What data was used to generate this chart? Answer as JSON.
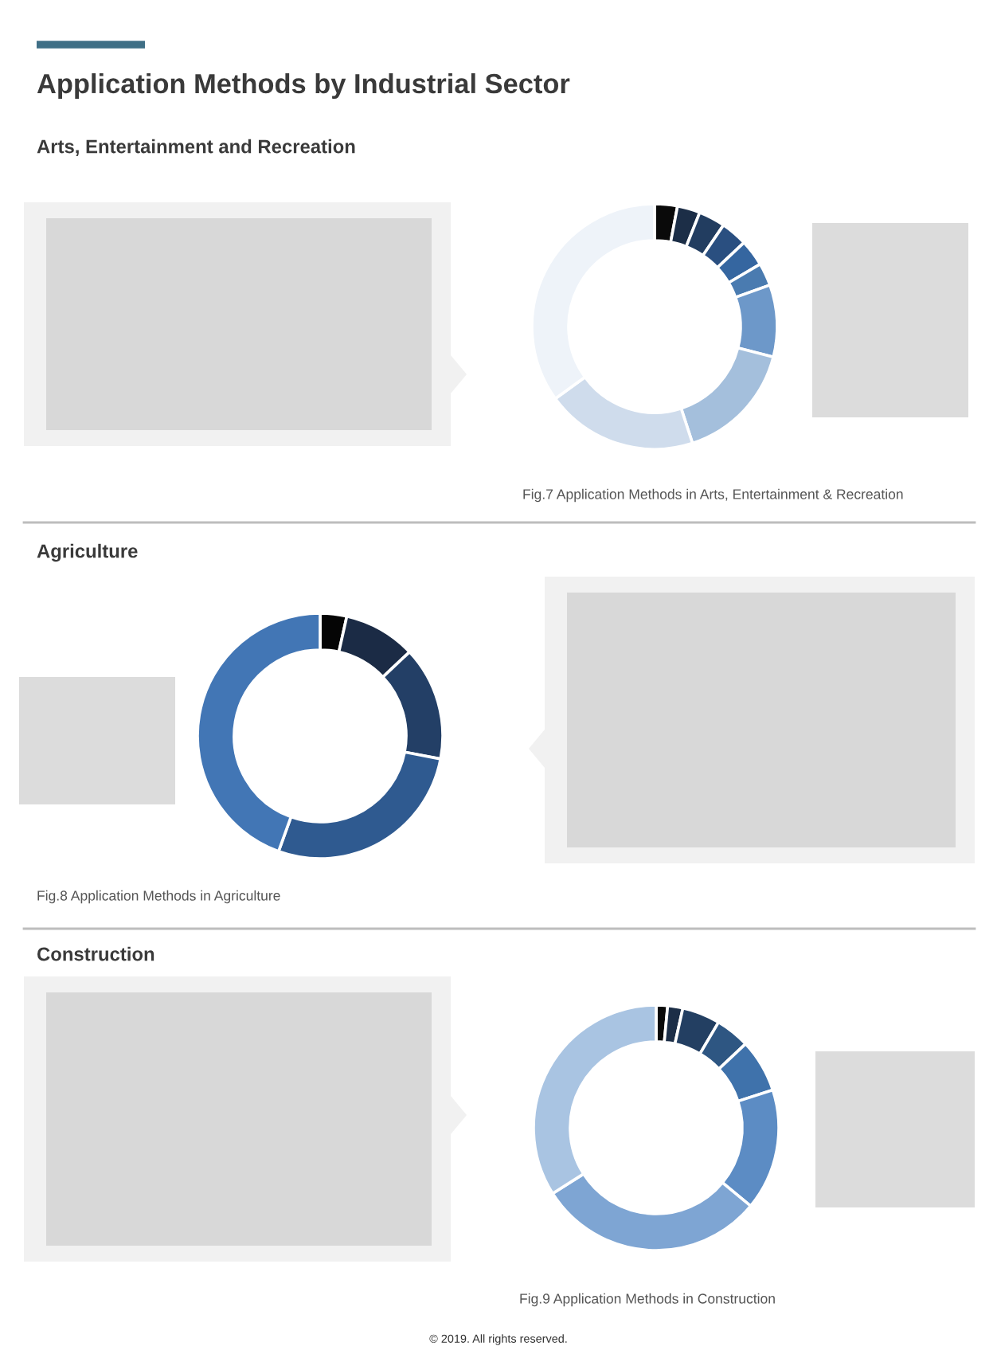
{
  "chart_data": [
    {
      "type": "donut",
      "title": "Application Methods by Industrial Sector",
      "subtitle": "Arts, Entertainment and Recreation",
      "categories": [
        null,
        null,
        null,
        null,
        null,
        null,
        null,
        null,
        null,
        null
      ],
      "values": [
        3,
        3,
        3.5,
        3.5,
        3.5,
        3,
        9.5,
        16,
        20,
        35
      ],
      "colors": [
        "#0a0a0a",
        "#1c2e47",
        "#223d60",
        "#2a4f80",
        "#3566a0",
        "#4a7bb0",
        "#6d98c9",
        "#a4bfdc",
        "#cfdcec",
        "#eef3f9"
      ],
      "annotations": [
        "Fig.7 Application Methods in Arts, Entertainment & Recreation"
      ]
    },
    {
      "type": "donut",
      "subtitle": "Agriculture",
      "categories": [
        null,
        null,
        null,
        null,
        null
      ],
      "values": [
        3.5,
        9.5,
        15,
        27.5,
        44.5
      ],
      "colors": [
        "#050505",
        "#1b2b45",
        "#233f66",
        "#2f5a90",
        "#4276b5"
      ],
      "annotations": [
        "Fig.8 Application Methods in Agriculture"
      ]
    },
    {
      "type": "donut",
      "categories": [
        null,
        null,
        null,
        null,
        null,
        null,
        null,
        null
      ],
      "values": [
        1.5,
        2,
        5,
        4.5,
        7,
        16,
        30,
        34
      ],
      "colors": [
        "#0a0a0a",
        "#1c2e47",
        "#233f62",
        "#2e5682",
        "#3f72ab",
        "#5c8cc4",
        "#7ea5d3",
        "#a9c4e2"
      ],
      "annotations": [
        "Construction",
        "Fig.9 Application Methods in Construction",
        "© 2019. All rights reserved."
      ]
    }
  ]
}
